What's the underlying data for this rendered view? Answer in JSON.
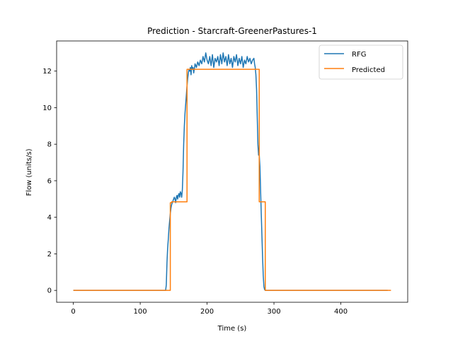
{
  "chart_data": {
    "type": "line",
    "title": "Prediction - Starcraft-GreenerPastures-1",
    "xlabel": "Time (s)",
    "ylabel": "Flow (units/s)",
    "xlim": [
      -25,
      500
    ],
    "ylim": [
      -0.65,
      13.65
    ],
    "xticks": [
      0,
      100,
      200,
      300,
      400
    ],
    "yticks": [
      0,
      2,
      4,
      6,
      8,
      10,
      12
    ],
    "grid": false,
    "legend_position": "top-right",
    "series": [
      {
        "name": "RFG",
        "color": "#1f77b4",
        "x": [
          0,
          50,
          100,
          138,
          139,
          140,
          141,
          142,
          143,
          144,
          145,
          146,
          147,
          148,
          149,
          150,
          151,
          152,
          153,
          154,
          155,
          156,
          157,
          158,
          159,
          160,
          161,
          162,
          163,
          164,
          165,
          166,
          167,
          168,
          169,
          170,
          171,
          172,
          173,
          174,
          175,
          176,
          177,
          178,
          179,
          180,
          182,
          184,
          186,
          188,
          190,
          192,
          194,
          196,
          198,
          200,
          202,
          204,
          206,
          208,
          210,
          212,
          214,
          216,
          218,
          220,
          222,
          224,
          226,
          228,
          230,
          232,
          234,
          236,
          238,
          240,
          242,
          244,
          246,
          248,
          250,
          252,
          254,
          256,
          258,
          260,
          262,
          264,
          266,
          268,
          270,
          271,
          272,
          273,
          274,
          275,
          276,
          277,
          278,
          279,
          280,
          281,
          282,
          283,
          284,
          285,
          286,
          287,
          288,
          290,
          300,
          350,
          400,
          450,
          470
        ],
        "y": [
          0,
          0,
          0,
          0,
          0.3,
          1.5,
          2.3,
          2.8,
          3.4,
          3.8,
          4.2,
          4.5,
          4.7,
          4.8,
          4.9,
          5.0,
          5.1,
          5.0,
          4.8,
          5.1,
          5.2,
          5.0,
          5.2,
          5.3,
          5.1,
          5.4,
          5.3,
          5.1,
          5.5,
          6.5,
          8.0,
          9.0,
          9.7,
          10.2,
          10.7,
          11.2,
          11.6,
          11.9,
          12.1,
          12.0,
          12.2,
          11.8,
          12.3,
          12.1,
          12.2,
          11.9,
          12.4,
          12.2,
          12.5,
          12.3,
          12.6,
          12.4,
          12.8,
          12.5,
          13.0,
          12.6,
          12.4,
          12.8,
          12.3,
          12.9,
          12.2,
          12.7,
          12.5,
          12.8,
          12.3,
          12.9,
          12.4,
          13.0,
          12.5,
          12.8,
          12.3,
          12.9,
          12.4,
          12.7,
          12.2,
          12.8,
          12.5,
          12.9,
          12.3,
          12.7,
          12.4,
          12.8,
          12.2,
          12.6,
          12.4,
          12.8,
          12.5,
          12.7,
          12.4,
          12.6,
          12.7,
          12.4,
          12.2,
          11.8,
          11.0,
          9.5,
          8.0,
          7.4,
          7.4,
          6.8,
          5.5,
          4.2,
          3.0,
          1.8,
          0.8,
          0.2,
          0.05,
          0.0,
          0.0,
          0.0,
          0.0,
          0.0,
          0.0,
          0.0,
          0.0
        ]
      },
      {
        "name": "Predicted",
        "color": "#ff7f0e",
        "x": [
          0,
          145,
          145,
          147,
          147,
          170,
          170,
          272,
          272,
          278,
          278,
          283,
          283,
          287,
          287,
          475
        ],
        "y": [
          0,
          0,
          4.8,
          4.8,
          4.85,
          4.85,
          12.1,
          12.1,
          12.1,
          12.1,
          4.85,
          4.85,
          4.85,
          4.85,
          0,
          0
        ]
      }
    ]
  }
}
